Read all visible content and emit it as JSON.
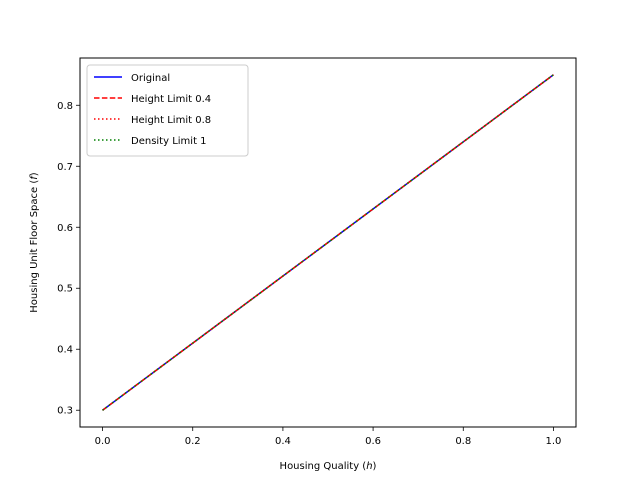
{
  "chart_data": {
    "type": "line",
    "title": "",
    "xlabel": "Housing Quality",
    "xlabel_symbol": "h",
    "ylabel": "Housing Unit Floor Space",
    "ylabel_symbol": "f",
    "xlim": [
      -0.05,
      1.05
    ],
    "ylim": [
      0.2725,
      0.8775
    ],
    "xticks": [
      0.0,
      0.2,
      0.4,
      0.6,
      0.8,
      1.0
    ],
    "xtick_labels": [
      "0.0",
      "0.2",
      "0.4",
      "0.6",
      "0.8",
      "1.0"
    ],
    "yticks": [
      0.3,
      0.4,
      0.5,
      0.6,
      0.7,
      0.8
    ],
    "ytick_labels": [
      "0.3",
      "0.4",
      "0.5",
      "0.6",
      "0.7",
      "0.8"
    ],
    "grid": false,
    "legend_position": "top-left",
    "x": [
      0.0,
      0.25,
      0.5,
      0.75,
      1.0
    ],
    "series": [
      {
        "name": "Original",
        "values": [
          0.3,
          0.4375,
          0.575,
          0.7125,
          0.85
        ],
        "color": "#0000ff",
        "style": "solid"
      },
      {
        "name": "Height Limit 0.4",
        "values": [
          0.3,
          0.4375,
          0.575,
          0.7125,
          0.85
        ],
        "color": "#ff0000",
        "style": "dashed"
      },
      {
        "name": "Height Limit 0.8",
        "values": [
          0.3,
          0.4375,
          0.575,
          0.7125,
          0.85
        ],
        "color": "#ff0000",
        "style": "dotted"
      },
      {
        "name": "Density Limit 1",
        "values": [
          0.3,
          0.4375,
          0.575,
          0.7125,
          0.85
        ],
        "color": "#008000",
        "style": "dotted"
      }
    ]
  }
}
